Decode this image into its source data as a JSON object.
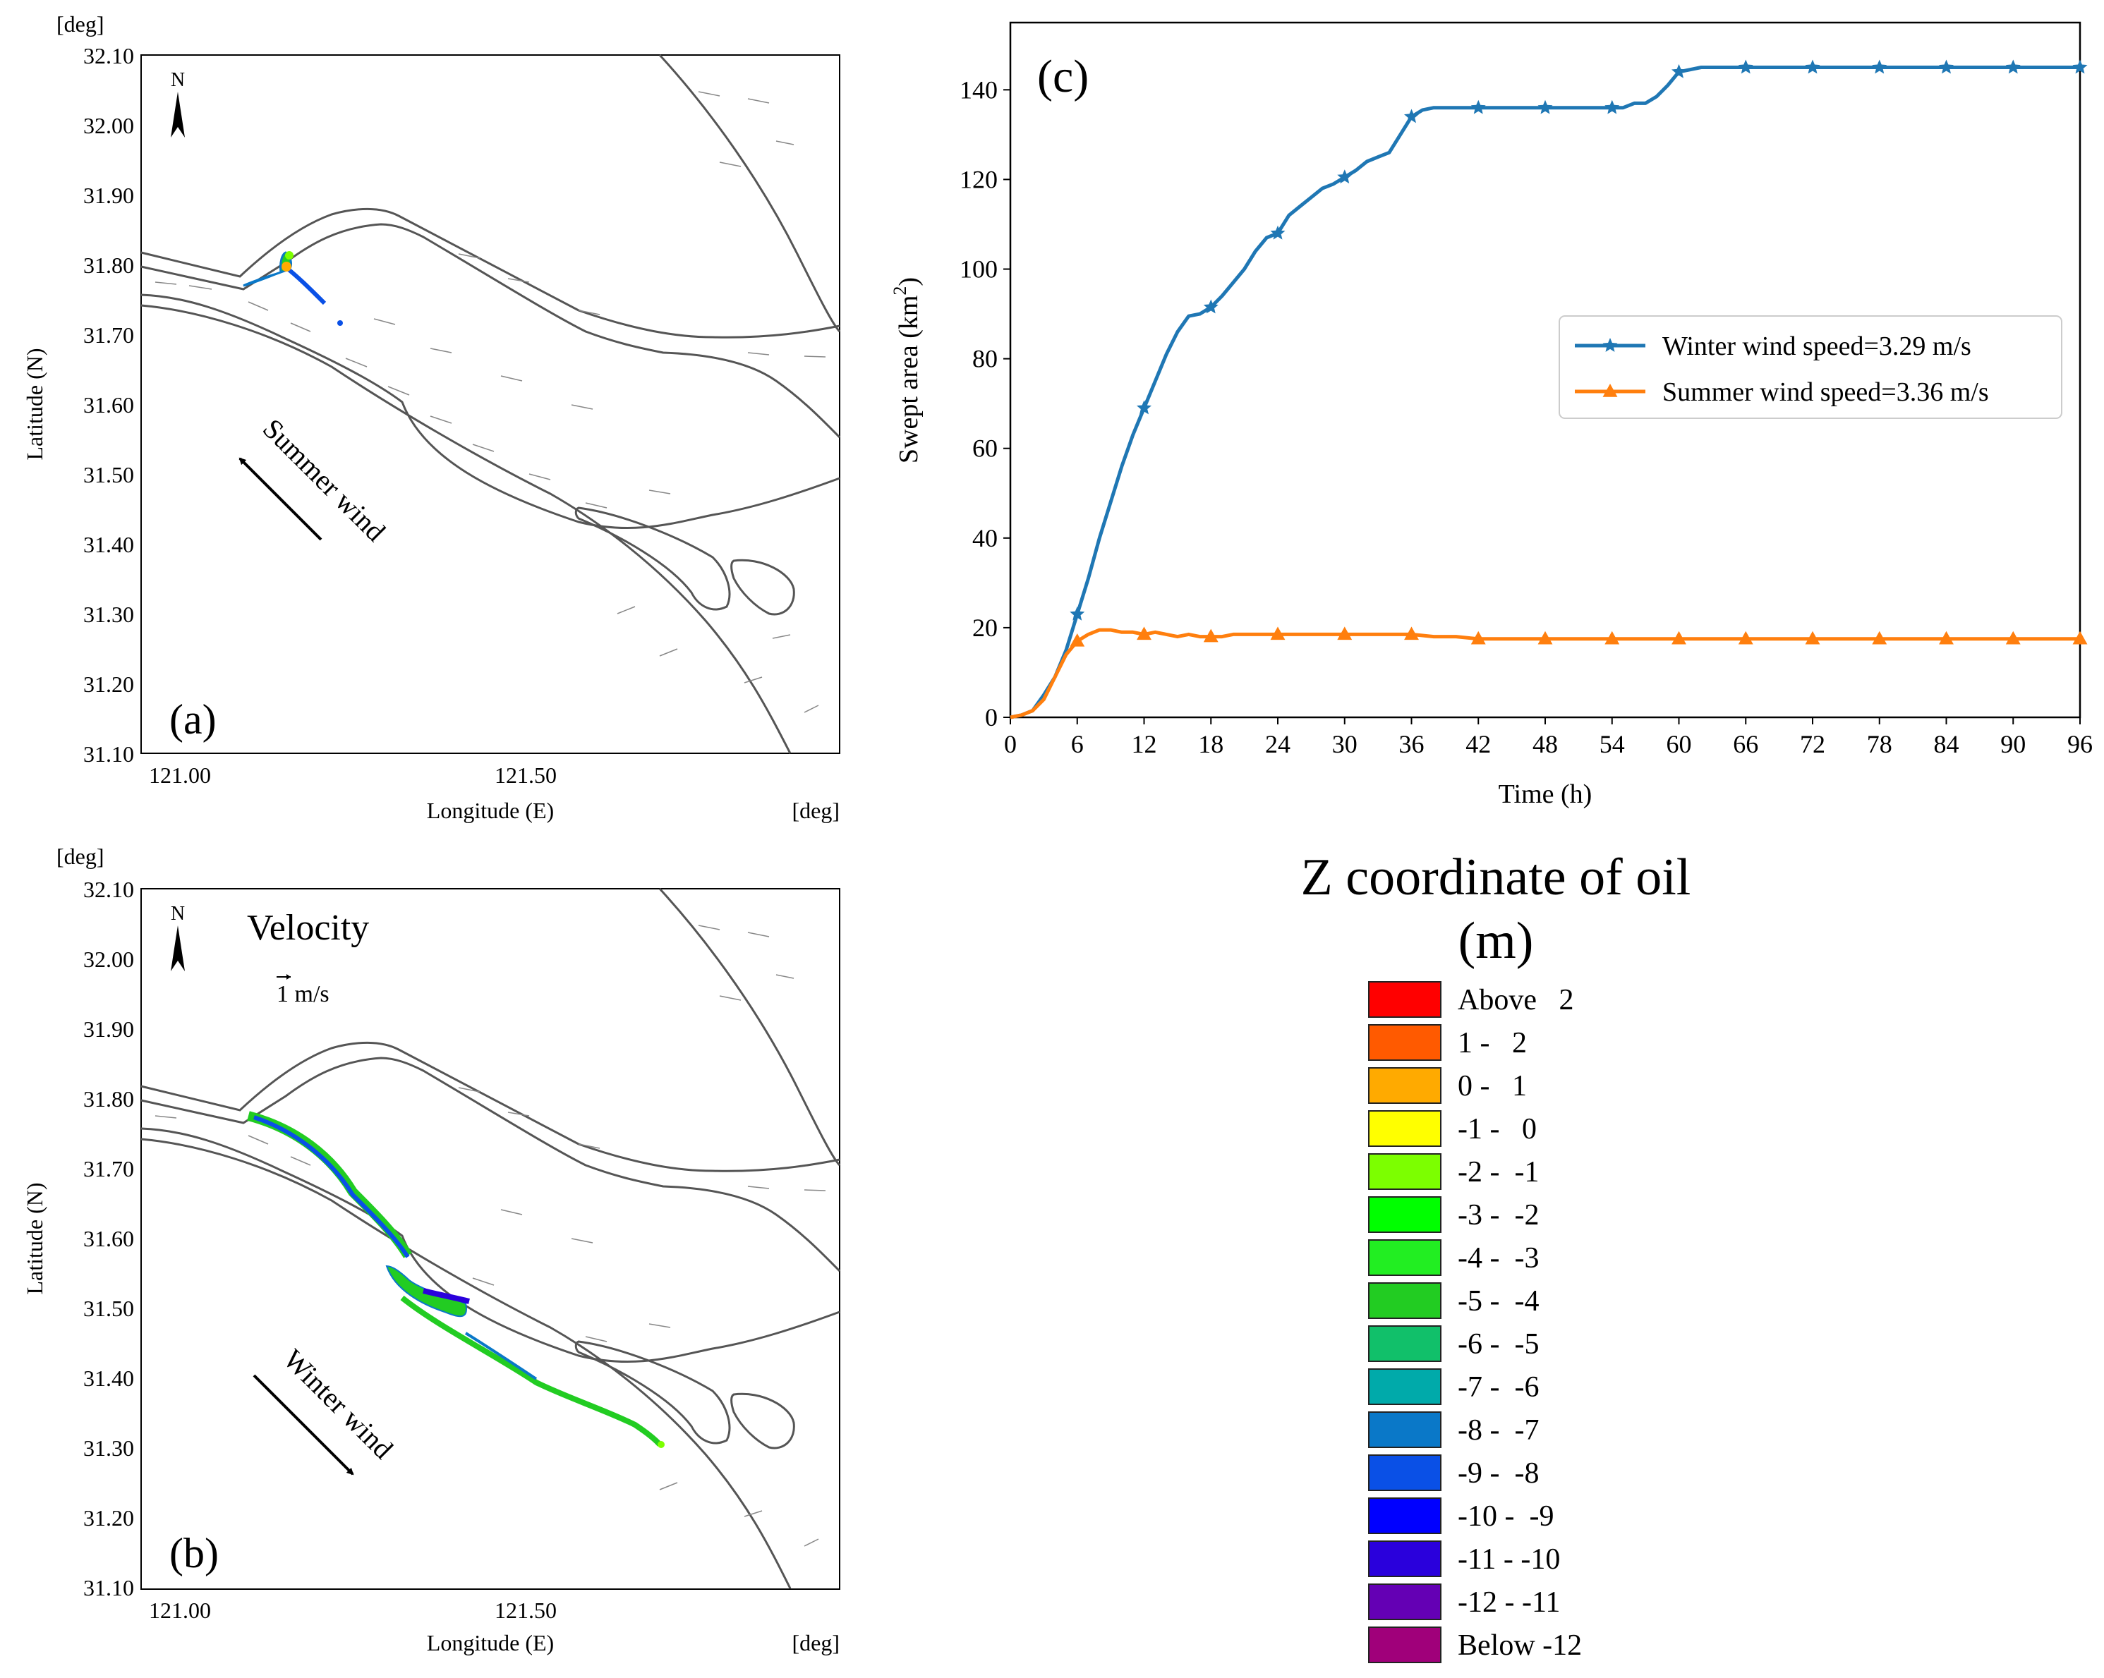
{
  "maps": {
    "a": {
      "panel_label": "(a)",
      "unit_top": "[deg]",
      "unit_bottom": "[deg]",
      "ylabel": "Latitude (N)",
      "xlabel": "Longitude (E)",
      "yticks": [
        "32.10",
        "32.00",
        "31.90",
        "31.80",
        "31.70",
        "31.60",
        "31.50",
        "31.40",
        "31.30",
        "31.20",
        "31.10"
      ],
      "xticks": [
        "121.00",
        "121.50"
      ],
      "north": "N",
      "wind_label": "Summer wind"
    },
    "b": {
      "panel_label": "(b)",
      "unit_top": "[deg]",
      "unit_bottom": "[deg]",
      "ylabel": "Latitude (N)",
      "xlabel": "Longitude (E)",
      "yticks": [
        "32.10",
        "32.00",
        "31.90",
        "31.80",
        "31.70",
        "31.60",
        "31.50",
        "31.40",
        "31.30",
        "31.20",
        "31.10"
      ],
      "xticks": [
        "121.00",
        "121.50"
      ],
      "north": "N",
      "velocity_title": "Velocity",
      "velocity_scale": "1 m/s",
      "wind_label": "Winter wind"
    }
  },
  "chart_data": {
    "type": "line",
    "panel_label": "(c)",
    "xlabel": "Time (h)",
    "ylabel": "Swept area (km",
    "ylabel_sup": "2",
    "ylabel_close": ")",
    "xlim": [
      0,
      96
    ],
    "ylim": [
      0,
      155
    ],
    "xticks": [
      0,
      6,
      12,
      18,
      24,
      30,
      36,
      42,
      48,
      54,
      60,
      66,
      72,
      78,
      84,
      90,
      96
    ],
    "yticks": [
      0,
      20,
      40,
      60,
      80,
      100,
      120,
      140
    ],
    "legend_position": "center-right",
    "series": [
      {
        "name": "Winter wind speed=3.29 m/s",
        "color": "#1f77b4",
        "marker": "star",
        "x": [
          0,
          1,
          2,
          3,
          4,
          5,
          6,
          7,
          8,
          9,
          10,
          11,
          12,
          13,
          14,
          15,
          16,
          17,
          18,
          19,
          20,
          21,
          22,
          23,
          24,
          25,
          26,
          27,
          28,
          29,
          30,
          31,
          32,
          33,
          34,
          35,
          36,
          37,
          38,
          39,
          40,
          42,
          48,
          54,
          55,
          56,
          57,
          58,
          59,
          60,
          62,
          66,
          72,
          78,
          84,
          90,
          96
        ],
        "y": [
          0,
          0.5,
          1.5,
          5,
          9,
          15,
          23,
          31,
          40,
          48,
          56,
          63,
          69,
          75,
          81,
          86,
          89.5,
          90,
          91.5,
          94,
          97,
          100,
          104,
          107,
          108,
          112,
          114,
          116,
          118,
          119,
          120.5,
          122,
          124,
          125,
          126,
          130,
          134,
          135.5,
          136,
          136,
          136,
          136,
          136,
          136,
          136,
          137,
          137,
          138.5,
          141,
          144,
          145,
          145,
          145,
          145,
          145,
          145,
          145
        ],
        "marker_x": [
          6,
          12,
          18,
          24,
          30,
          36,
          42,
          48,
          54,
          60,
          66,
          72,
          78,
          84,
          90,
          96
        ]
      },
      {
        "name": "Summer wind speed=3.36 m/s",
        "color": "#ff7f0e",
        "marker": "triangle",
        "x": [
          0,
          1,
          2,
          3,
          4,
          5,
          6,
          7,
          8,
          9,
          10,
          11,
          12,
          13,
          14,
          15,
          16,
          17,
          18,
          19,
          20,
          21,
          22,
          24,
          26,
          30,
          34,
          36,
          38,
          40,
          42,
          48,
          54,
          60,
          66,
          72,
          78,
          84,
          90,
          96
        ],
        "y": [
          0,
          0.5,
          1.5,
          4,
          9,
          14,
          17,
          18.5,
          19.5,
          19.5,
          19,
          19,
          18.5,
          19,
          18.5,
          18,
          18.5,
          18,
          18,
          18,
          18.5,
          18.5,
          18.5,
          18.5,
          18.5,
          18.5,
          18.5,
          18.5,
          18,
          18,
          17.5,
          17.5,
          17.5,
          17.5,
          17.5,
          17.5,
          17.5,
          17.5,
          17.5,
          17.5
        ],
        "marker_x": [
          6,
          12,
          18,
          24,
          30,
          36,
          42,
          48,
          54,
          60,
          66,
          72,
          78,
          84,
          90,
          96
        ]
      }
    ]
  },
  "colorbar": {
    "title": "Z coordinate of oil",
    "unit": "(m)",
    "items": [
      {
        "label": "Above   2",
        "color": "#ff0000"
      },
      {
        "label": "1 -   2",
        "color": "#ff5a00"
      },
      {
        "label": "0 -   1",
        "color": "#ffaa00"
      },
      {
        "label": "-1 -   0",
        "color": "#ffff00"
      },
      {
        "label": "-2 -  -1",
        "color": "#7cff00"
      },
      {
        "label": "-3 -  -2",
        "color": "#00ff00"
      },
      {
        "label": "-4 -  -3",
        "color": "#22ee22"
      },
      {
        "label": "-5 -  -4",
        "color": "#22cc22"
      },
      {
        "label": "-6 -  -5",
        "color": "#11c06a"
      },
      {
        "label": "-7 -  -6",
        "color": "#00aaaa"
      },
      {
        "label": "-8 -  -7",
        "color": "#0a78c8"
      },
      {
        "label": "-9 -  -8",
        "color": "#0a50e6"
      },
      {
        "label": "-10 -  -9",
        "color": "#0000ff"
      },
      {
        "label": "-11 - -10",
        "color": "#2a00dc"
      },
      {
        "label": "-12 - -11",
        "color": "#6400b4"
      },
      {
        "label": "Below -12",
        "color": "#a0007a"
      }
    ]
  }
}
